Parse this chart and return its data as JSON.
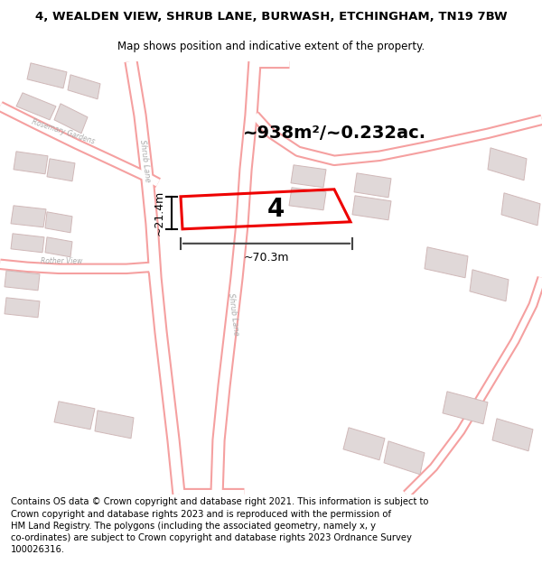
{
  "title": "4, WEALDEN VIEW, SHRUB LANE, BURWASH, ETCHINGHAM, TN19 7BW",
  "subtitle": "Map shows position and indicative extent of the property.",
  "footer": "Contains OS data © Crown copyright and database right 2021. This information is subject to\nCrown copyright and database rights 2023 and is reproduced with the permission of\nHM Land Registry. The polygons (including the associated geometry, namely x, y\nco-ordinates) are subject to Crown copyright and database rights 2023 Ordnance Survey\n100026316.",
  "map_bg": "#ffffff",
  "road_stroke": "#f5a0a0",
  "road_fill": "#ffffff",
  "building_face": "#e0d8d8",
  "building_edge": "#d0b8b8",
  "highlight_color": "#ee0000",
  "measure_color": "#444444",
  "area_text": "~938m²/~0.232ac.",
  "width_text": "~70.3m",
  "height_text": "~21.4m",
  "property_number": "4",
  "title_fontsize": 9.5,
  "subtitle_fontsize": 8.5,
  "footer_fontsize": 7.2,
  "label_color": "#aaaaaa"
}
